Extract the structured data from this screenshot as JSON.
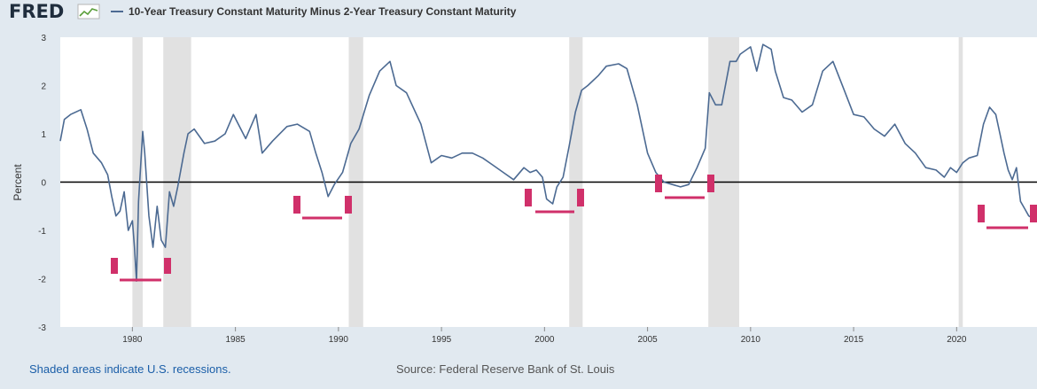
{
  "header": {
    "logo_text": "FRED",
    "legend_label": "10-Year Treasury Constant Maturity Minus 2-Year Treasury Constant Maturity"
  },
  "footer": {
    "recession_note": "Shaded areas indicate U.S. recessions.",
    "source": "Source: Federal Reserve Bank of St. Louis"
  },
  "colors": {
    "series": "#4c6a92",
    "recession": "#e1e1e1",
    "zero_line": "#000000",
    "annotation": "#d0306a",
    "background": "#e1e9f0",
    "plot_bg": "#ffffff",
    "note_text": "#1a5ea8"
  },
  "chart_data": {
    "type": "line",
    "title": "10-Year Treasury Constant Maturity Minus 2-Year Treasury Constant Maturity",
    "xlabel": "",
    "ylabel": "Percent",
    "xlim": [
      1976.5,
      2023.9
    ],
    "ylim": [
      -3,
      3
    ],
    "x_ticks": [
      1980,
      1985,
      1990,
      1995,
      2000,
      2005,
      2010,
      2015,
      2020
    ],
    "y_ticks": [
      3,
      2,
      1,
      0,
      -1,
      -2,
      -3
    ],
    "recessions": [
      [
        1980.0,
        1980.5
      ],
      [
        1981.5,
        1982.85
      ],
      [
        1990.5,
        1991.2
      ],
      [
        2001.2,
        2001.85
      ],
      [
        2007.95,
        2009.45
      ],
      [
        2020.1,
        2020.3
      ]
    ],
    "series": [
      {
        "name": "10-Year Treasury Constant Maturity Minus 2-Year Treasury Constant Maturity",
        "x": [
          1976.5,
          1976.7,
          1977.0,
          1977.5,
          1977.8,
          1978.1,
          1978.5,
          1978.8,
          1979.0,
          1979.2,
          1979.4,
          1979.6,
          1979.8,
          1980.0,
          1980.1,
          1980.2,
          1980.3,
          1980.5,
          1980.6,
          1980.8,
          1981.0,
          1981.2,
          1981.4,
          1981.6,
          1981.8,
          1982.0,
          1982.2,
          1982.5,
          1982.7,
          1983.0,
          1983.5,
          1984.0,
          1984.5,
          1984.9,
          1985.5,
          1986.0,
          1986.3,
          1986.8,
          1987.5,
          1988.0,
          1988.6,
          1988.9,
          1989.2,
          1989.5,
          1989.8,
          1990.2,
          1990.6,
          1991.0,
          1991.5,
          1992.0,
          1992.5,
          1992.8,
          1993.3,
          1994.0,
          1994.5,
          1995.0,
          1995.5,
          1996.0,
          1996.5,
          1997.0,
          1997.5,
          1998.0,
          1998.5,
          1999.0,
          1999.3,
          1999.6,
          1999.9,
          2000.1,
          2000.4,
          2000.6,
          2000.9,
          2001.2,
          2001.5,
          2001.8,
          2002.1,
          2002.6,
          2003.0,
          2003.6,
          2004.0,
          2004.5,
          2005.0,
          2005.4,
          2005.8,
          2006.2,
          2006.6,
          2007.0,
          2007.4,
          2007.8,
          2008.0,
          2008.3,
          2008.6,
          2009.0,
          2009.3,
          2009.5,
          2010.0,
          2010.3,
          2010.6,
          2011.0,
          2011.2,
          2011.6,
          2012.0,
          2012.5,
          2013.0,
          2013.5,
          2014.0,
          2014.5,
          2015.0,
          2015.5,
          2016.0,
          2016.5,
          2017.0,
          2017.5,
          2018.0,
          2018.5,
          2019.0,
          2019.4,
          2019.7,
          2020.0,
          2020.3,
          2020.6,
          2021.0,
          2021.3,
          2021.6,
          2021.9,
          2022.1,
          2022.3,
          2022.5,
          2022.7,
          2022.9,
          2023.1,
          2023.3,
          2023.5,
          2023.7,
          2023.85
        ],
        "values": [
          0.85,
          1.3,
          1.4,
          1.5,
          1.1,
          0.6,
          0.4,
          0.15,
          -0.3,
          -0.7,
          -0.6,
          -0.2,
          -1.0,
          -0.8,
          -1.35,
          -2.05,
          -0.4,
          1.05,
          0.6,
          -0.7,
          -1.35,
          -0.5,
          -1.2,
          -1.35,
          -0.2,
          -0.5,
          -0.1,
          0.6,
          1.0,
          1.1,
          0.8,
          0.85,
          1.0,
          1.4,
          0.9,
          1.4,
          0.6,
          0.85,
          1.15,
          1.2,
          1.05,
          0.6,
          0.2,
          -0.3,
          -0.05,
          0.2,
          0.8,
          1.1,
          1.8,
          2.3,
          2.5,
          2.0,
          1.85,
          1.2,
          0.4,
          0.55,
          0.5,
          0.6,
          0.6,
          0.5,
          0.35,
          0.2,
          0.05,
          0.3,
          0.2,
          0.25,
          0.1,
          -0.35,
          -0.45,
          -0.1,
          0.1,
          0.75,
          1.45,
          1.9,
          2.0,
          2.2,
          2.4,
          2.45,
          2.35,
          1.6,
          0.6,
          0.2,
          0.0,
          -0.05,
          -0.1,
          -0.05,
          0.3,
          0.7,
          1.85,
          1.6,
          1.6,
          2.5,
          2.5,
          2.65,
          2.8,
          2.3,
          2.85,
          2.75,
          2.3,
          1.75,
          1.7,
          1.45,
          1.6,
          2.3,
          2.5,
          1.95,
          1.4,
          1.35,
          1.1,
          0.95,
          1.2,
          0.8,
          0.6,
          0.3,
          0.25,
          0.1,
          0.3,
          0.2,
          0.4,
          0.5,
          0.55,
          1.2,
          1.55,
          1.4,
          1.0,
          0.6,
          0.25,
          0.05,
          0.3,
          -0.4,
          -0.55,
          -0.7,
          -0.75,
          -0.7
        ]
      }
    ]
  }
}
